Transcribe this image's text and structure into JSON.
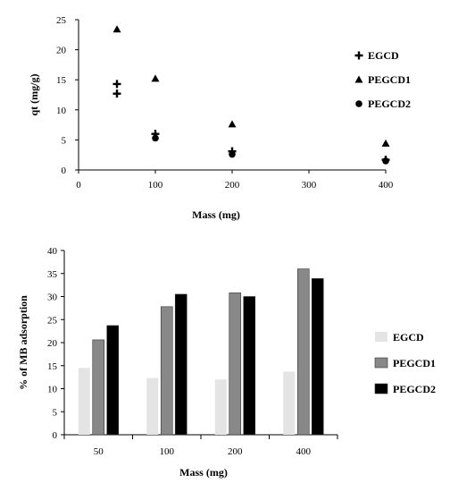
{
  "chart_data": [
    {
      "type": "scatter",
      "title": "",
      "xlabel": "Mass (mg)",
      "ylabel": "qt (mg/g)",
      "xlim": [
        0,
        400
      ],
      "ylim": [
        0,
        25
      ],
      "xticks": [
        0,
        100,
        200,
        300,
        400
      ],
      "yticks": [
        0,
        5,
        10,
        15,
        20,
        25
      ],
      "legend_position": "right",
      "grid": false,
      "series": [
        {
          "name": "EGCD",
          "marker": "diamond-plus",
          "color": "#000000",
          "points": [
            [
              50,
              14.3
            ],
            [
              50,
              12.7
            ],
            [
              100,
              6.0
            ],
            [
              200,
              3.1
            ],
            [
              400,
              1.7
            ]
          ]
        },
        {
          "name": "PEGCD1",
          "marker": "triangle",
          "color": "#000000",
          "points": [
            [
              50,
              23.4
            ],
            [
              100,
              15.2
            ],
            [
              200,
              7.6
            ],
            [
              400,
              4.4
            ]
          ]
        },
        {
          "name": "PEGCD2",
          "marker": "circle",
          "color": "#000000",
          "points": [
            [
              100,
              5.3
            ],
            [
              200,
              2.6
            ],
            [
              400,
              1.5
            ]
          ]
        }
      ]
    },
    {
      "type": "bar",
      "title": "",
      "xlabel": "Mass (mg)",
      "ylabel": "% of MB adsorption",
      "categories": [
        "50",
        "100",
        "200",
        "400"
      ],
      "ylim": [
        0,
        40
      ],
      "yticks": [
        0,
        5,
        10,
        15,
        20,
        25,
        30,
        35,
        40
      ],
      "legend_position": "right",
      "grid": false,
      "series": [
        {
          "name": "EGCD",
          "color": "#e4e4e4",
          "values": [
            14.5,
            12.3,
            12.0,
            13.7
          ]
        },
        {
          "name": "PEGCD1",
          "color": "#888888",
          "values": [
            20.6,
            27.8,
            30.8,
            36.0
          ]
        },
        {
          "name": "PEGCD2",
          "color": "#000000",
          "values": [
            23.7,
            30.5,
            30.0,
            33.9
          ]
        }
      ]
    }
  ]
}
